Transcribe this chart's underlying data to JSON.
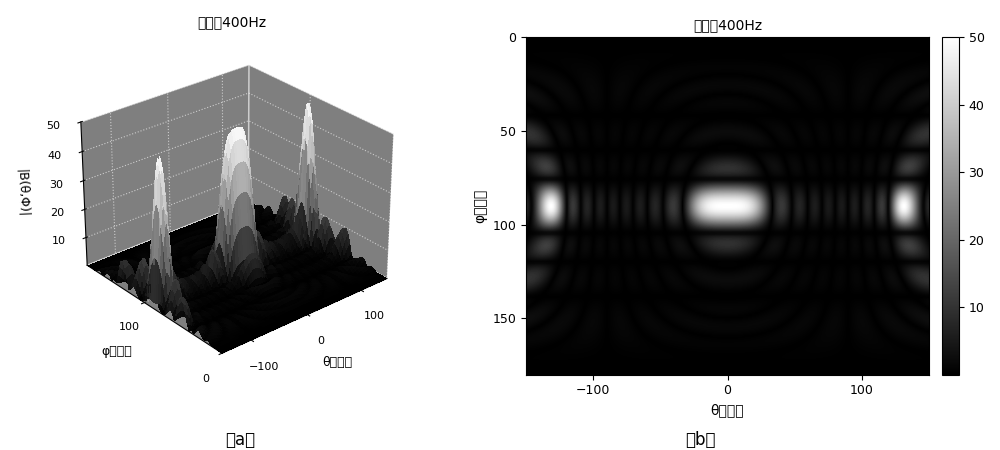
{
  "title": "频率为400Hz",
  "colorbar_ticks": [
    10,
    20,
    30,
    40,
    50
  ],
  "xlabel_3d": "θ（度）",
  "ylabel_3d": "φ（度）",
  "zlabel_3d": "|B(θ,Φ)|",
  "xlabel_2d": "θ（度）",
  "ylabel_2d": "φ（度）",
  "caption_a": "（a）",
  "caption_b": "（b）",
  "background_color": "#ffffff",
  "theta_ticks_3d": [
    -100,
    0,
    100
  ],
  "phi_ticks_3d": [
    0,
    100
  ],
  "z_ticks_3d": [
    10,
    20,
    30,
    40,
    50
  ],
  "theta_ticks_2d": [
    -100,
    0,
    100
  ],
  "phi_ticks_2d": [
    0,
    50,
    100,
    150
  ],
  "N_el": 6,
  "N_az": 8,
  "d_el": 0.5,
  "d_az": 0.5,
  "vmax": 50
}
